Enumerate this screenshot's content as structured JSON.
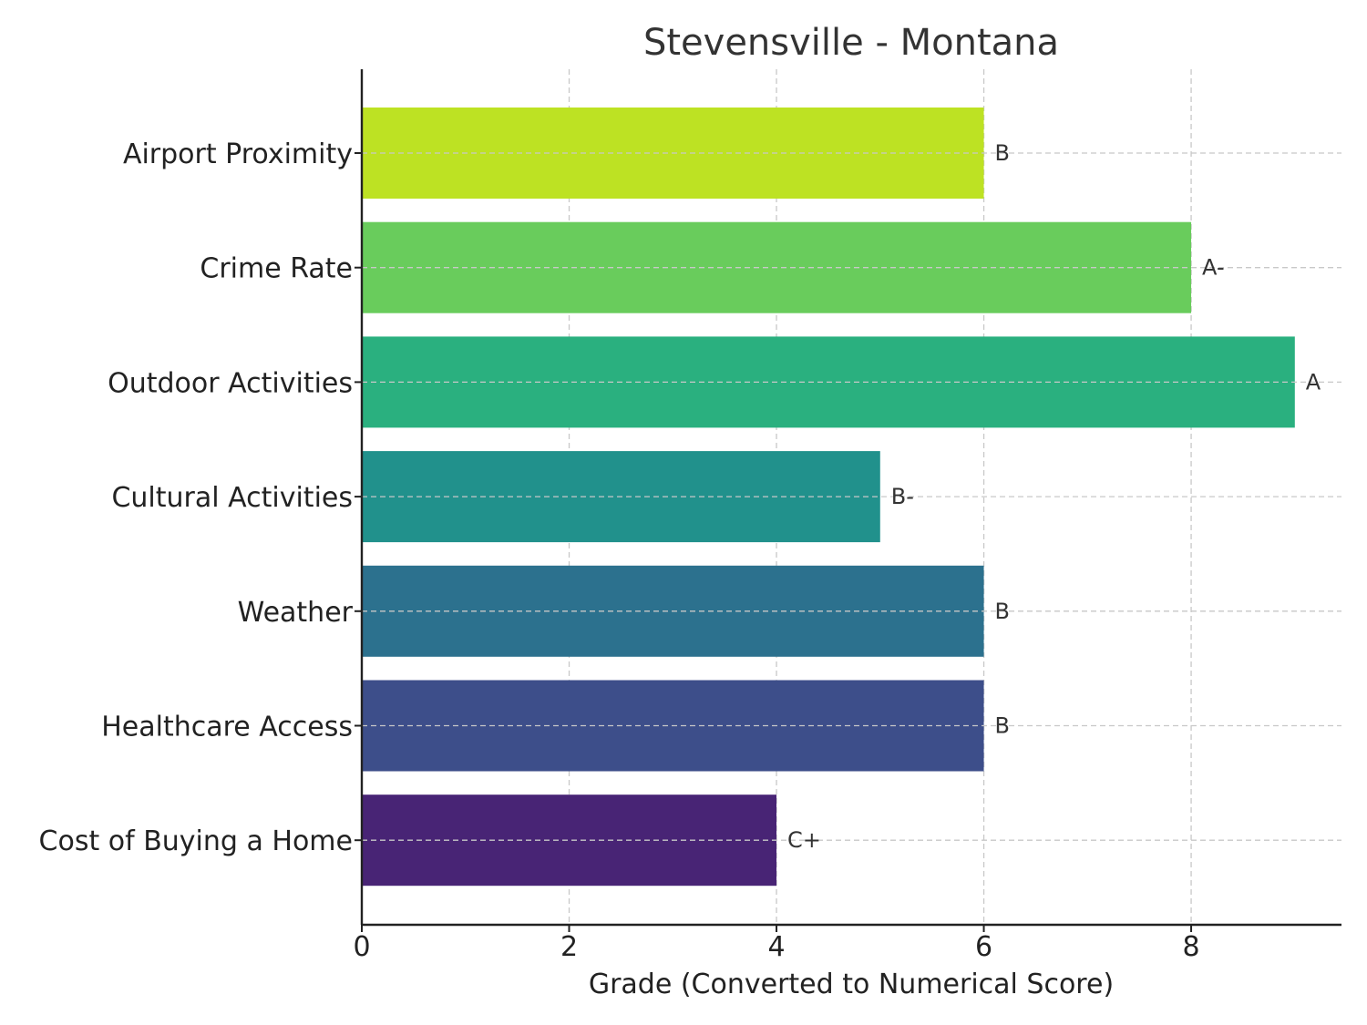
{
  "chart_data": {
    "type": "bar",
    "orientation": "horizontal",
    "title": "Stevensville - Montana",
    "xlabel": "Grade (Converted to Numerical Score)",
    "ylabel": "",
    "categories": [
      "Airport Proximity",
      "Crime Rate",
      "Outdoor Activities",
      "Cultural Activities",
      "Weather",
      "Healthcare Access",
      "Cost of Buying a Home"
    ],
    "values": [
      6,
      8,
      9,
      5,
      6,
      6,
      4
    ],
    "grades": [
      "B",
      "A-",
      "A",
      "B-",
      "B",
      "B",
      "C+"
    ],
    "colors": [
      "#bde223",
      "#69cc5c",
      "#2ab07f",
      "#21918c",
      "#2c718e",
      "#3d4e8a",
      "#482475"
    ],
    "xlim": [
      0,
      9.45
    ],
    "xticks": [
      0,
      2,
      4,
      6,
      8
    ],
    "grid": true
  }
}
